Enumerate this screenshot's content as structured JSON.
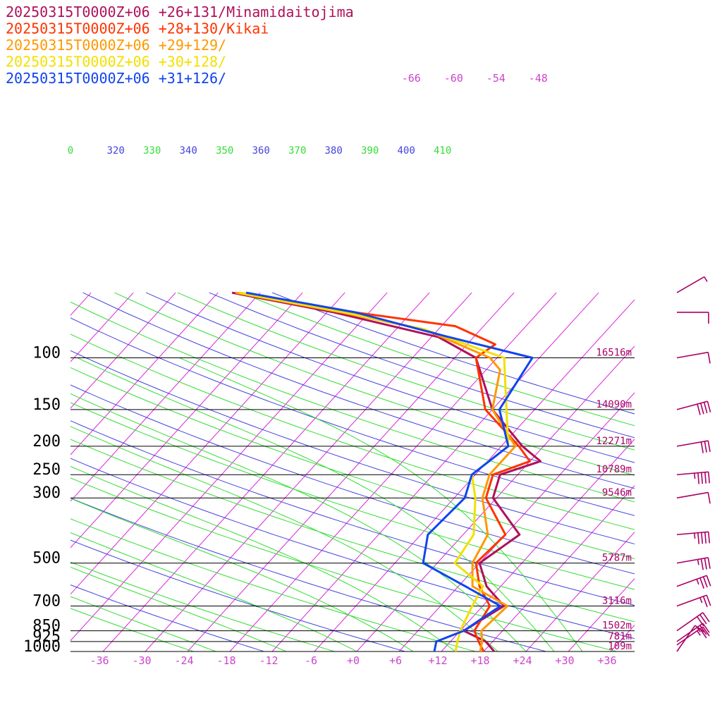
{
  "chart_data": {
    "type": "line",
    "subtype": "skew-t log-p sounding",
    "legend": {
      "placement": "top-left",
      "entries": [
        {
          "text": "20250315T0000Z+06 +26+131/Minamidaitojima",
          "color": "#b0105a"
        },
        {
          "text": "20250315T0000Z+06 +28+130/Kikai",
          "color": "#ff3300"
        },
        {
          "text": "20250315T0000Z+06 +29+129/",
          "color": "#ff9900"
        },
        {
          "text": "20250315T0000Z+06 +30+128/",
          "color": "#f2e000"
        },
        {
          "text": "20250315T0000Z+06 +31+126/",
          "color": "#1144ee"
        }
      ]
    },
    "pressure_levels": [
      {
        "p": 100,
        "label": "100",
        "height": "16516m"
      },
      {
        "p": 150,
        "label": "150",
        "height": "14090m"
      },
      {
        "p": 200,
        "label": "200",
        "height": "12271m"
      },
      {
        "p": 250,
        "label": "250",
        "height": "10789m"
      },
      {
        "p": 300,
        "label": "300",
        "height": "9546m"
      },
      {
        "p": 500,
        "label": "500",
        "height": "5787m"
      },
      {
        "p": 700,
        "label": "700",
        "height": "3116m"
      },
      {
        "p": 850,
        "label": "850",
        "height": "1502m"
      },
      {
        "p": 925,
        "label": "925",
        "height": "781m"
      },
      {
        "p": 1000,
        "label": "1000",
        "height": "109m"
      }
    ],
    "x_ticks": [
      "-36",
      "-30",
      "-24",
      "-18",
      "-12",
      "-6",
      "+0",
      "+6",
      "+12",
      "+18",
      "+24",
      "+30",
      "+36"
    ],
    "x_tick_values": [
      -36,
      -30,
      -24,
      -18,
      -12,
      -6,
      0,
      6,
      12,
      18,
      24,
      30,
      36
    ],
    "upper_isotherm_labels": [
      "-66",
      "-60",
      "-54",
      "-48"
    ],
    "upper_isotherm_values": [
      -66,
      -60,
      -54,
      -48
    ],
    "theta_labels": [
      {
        "text": "0",
        "color": "#33dd33"
      },
      {
        "text": "320",
        "color": "#4444dd"
      },
      {
        "text": "330",
        "color": "#33dd33"
      },
      {
        "text": "340",
        "color": "#4444dd"
      },
      {
        "text": "350",
        "color": "#33dd33"
      },
      {
        "text": "360",
        "color": "#4444dd"
      },
      {
        "text": "370",
        "color": "#33dd33"
      },
      {
        "text": "380",
        "color": "#4444dd"
      },
      {
        "text": "390",
        "color": "#33dd33"
      },
      {
        "text": "400",
        "color": "#4444dd"
      },
      {
        "text": "410",
        "color": "#33dd33"
      }
    ],
    "colors": {
      "isotherm": "#dd22dd",
      "dry_adiabat": "#4444dd",
      "moist_adiabat": "#33dd33",
      "isobar": "#000000",
      "axis_labels": "#cc44cc",
      "wind_barbs": "#aa0066"
    },
    "series": [
      {
        "name": "20250315T0000Z+06 +26+131/Minamidaitojima",
        "color": "#b0105a",
        "points": [
          [
            1000,
            19.5
          ],
          [
            925,
            17.0
          ],
          [
            850,
            12.5
          ],
          [
            700,
            15.0
          ],
          [
            600,
            10.0
          ],
          [
            500,
            6.0
          ],
          [
            400,
            8.0
          ],
          [
            300,
            -0.5
          ],
          [
            250,
            -2.5
          ],
          [
            225,
            1.5
          ],
          [
            200,
            -3.0
          ],
          [
            150,
            -12.0
          ],
          [
            100,
            -21.0
          ],
          [
            85,
            -29.0
          ],
          [
            70,
            -47.0
          ],
          [
            60,
            -64.0
          ]
        ]
      },
      {
        "name": "20250315T0000Z+06 +28+130/Kikai",
        "color": "#ff3300",
        "points": [
          [
            1000,
            18.0
          ],
          [
            925,
            16.0
          ],
          [
            850,
            14.0
          ],
          [
            700,
            13.0
          ],
          [
            600,
            9.0
          ],
          [
            500,
            5.5
          ],
          [
            400,
            6.0
          ],
          [
            300,
            -1.5
          ],
          [
            250,
            -3.5
          ],
          [
            225,
            0.0
          ],
          [
            200,
            -3.5
          ],
          [
            150,
            -13.0
          ],
          [
            100,
            -21.0
          ],
          [
            90,
            -20.0
          ],
          [
            78,
            -28.0
          ],
          [
            70,
            -44.0
          ],
          [
            60,
            -63.0
          ]
        ]
      },
      {
        "name": "20250315T0000Z+06 +29+129/",
        "color": "#ff9900",
        "points": [
          [
            1000,
            17.5
          ],
          [
            925,
            16.5
          ],
          [
            850,
            15.0
          ],
          [
            700,
            15.5
          ],
          [
            600,
            8.0
          ],
          [
            500,
            5.0
          ],
          [
            400,
            3.5
          ],
          [
            300,
            -2.0
          ],
          [
            250,
            -4.0
          ],
          [
            200,
            -4.0
          ],
          [
            150,
            -12.0
          ],
          [
            110,
            -16.0
          ],
          [
            100,
            -19.0
          ],
          [
            80,
            -32.0
          ],
          [
            70,
            -46.0
          ],
          [
            60,
            -63.5
          ]
        ]
      },
      {
        "name": "20250315T0000Z+06 +30+128/",
        "color": "#f2e000",
        "points": [
          [
            1000,
            14.0
          ],
          [
            925,
            13.0
          ],
          [
            850,
            12.0
          ],
          [
            700,
            10.5
          ],
          [
            600,
            9.5
          ],
          [
            500,
            2.5
          ],
          [
            400,
            1.5
          ],
          [
            300,
            -3.0
          ],
          [
            250,
            -6.5
          ],
          [
            200,
            -5.0
          ],
          [
            150,
            -10.0
          ],
          [
            100,
            -17.0
          ],
          [
            80,
            -32.0
          ],
          [
            70,
            -45.5
          ],
          [
            60,
            -63.0
          ]
        ]
      },
      {
        "name": "20250315T0000Z+06 +31+126/",
        "color": "#1144ee",
        "points": [
          [
            1000,
            11.0
          ],
          [
            925,
            10.0
          ],
          [
            850,
            12.5
          ],
          [
            700,
            14.5
          ],
          [
            600,
            7.0
          ],
          [
            500,
            -2.0
          ],
          [
            400,
            -5.0
          ],
          [
            300,
            -4.5
          ],
          [
            250,
            -6.5
          ],
          [
            200,
            -5.0
          ],
          [
            150,
            -11.0
          ],
          [
            100,
            -13.0
          ],
          [
            85,
            -27.5
          ],
          [
            70,
            -44.0
          ],
          [
            60,
            -62.0
          ]
        ]
      }
    ],
    "wind_barbs": {
      "color": "#aa0066",
      "levels": [
        {
          "p": 1000,
          "speed_kt": 10,
          "dir_deg": 215
        },
        {
          "p": 950,
          "speed_kt": 25,
          "dir_deg": 235
        },
        {
          "p": 925,
          "speed_kt": 25,
          "dir_deg": 235
        },
        {
          "p": 850,
          "speed_kt": 30,
          "dir_deg": 235
        },
        {
          "p": 700,
          "speed_kt": 25,
          "dir_deg": 250
        },
        {
          "p": 600,
          "speed_kt": 35,
          "dir_deg": 250
        },
        {
          "p": 500,
          "speed_kt": 35,
          "dir_deg": 260
        },
        {
          "p": 400,
          "speed_kt": 45,
          "dir_deg": 265
        },
        {
          "p": 300,
          "speed_kt": 10,
          "dir_deg": 260
        },
        {
          "p": 250,
          "speed_kt": 45,
          "dir_deg": 265
        },
        {
          "p": 200,
          "speed_kt": 30,
          "dir_deg": 260
        },
        {
          "p": 150,
          "speed_kt": 40,
          "dir_deg": 255
        },
        {
          "p": 100,
          "speed_kt": 10,
          "dir_deg": 260
        },
        {
          "p": 70,
          "speed_kt": 10,
          "dir_deg": 270
        },
        {
          "p": 60,
          "speed_kt": 5,
          "dir_deg": 240
        }
      ]
    }
  }
}
